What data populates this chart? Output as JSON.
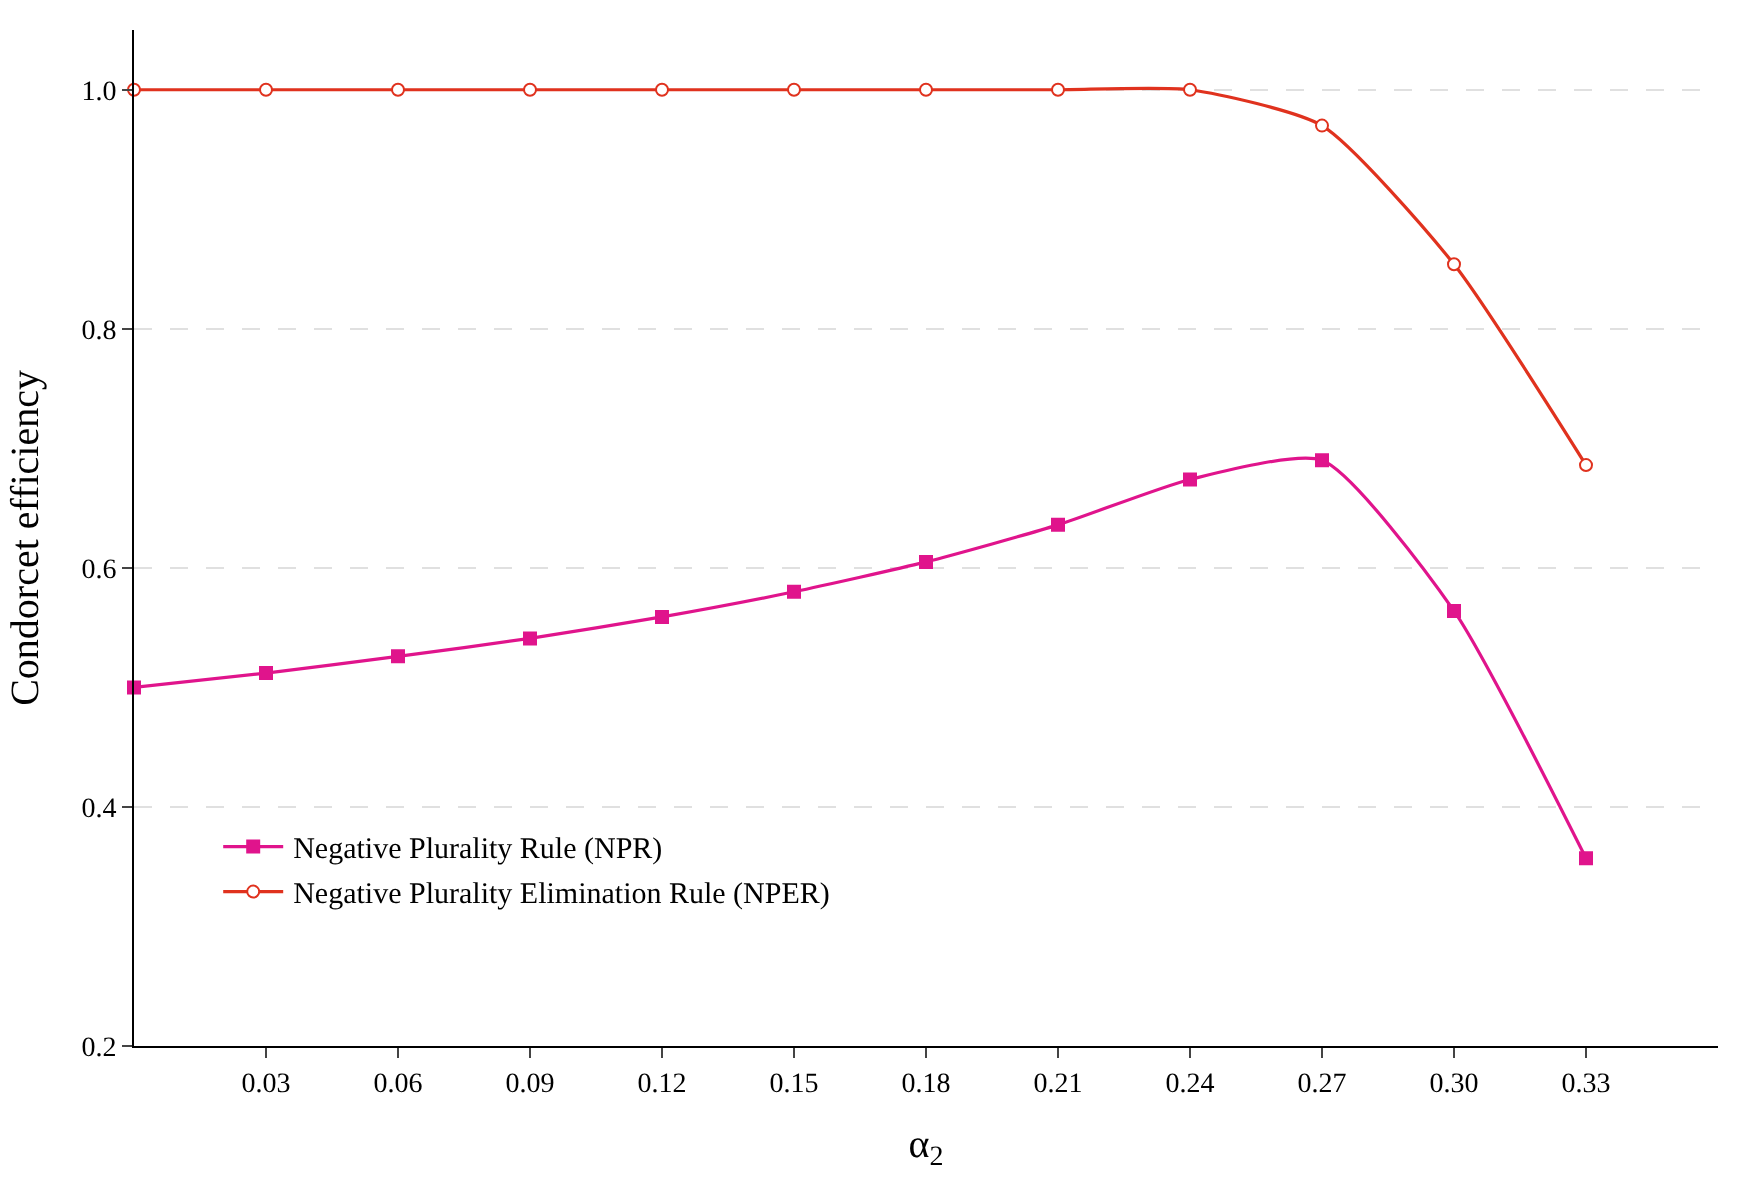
{
  "chart_data": {
    "type": "line",
    "xlabel": "α$_{2}$",
    "ylabel": "Condorcet efficiency",
    "x": [
      0,
      0.03,
      0.06,
      0.09,
      0.12,
      0.15,
      0.18,
      0.21,
      0.24,
      0.27,
      0.3,
      0.33
    ],
    "series": [
      {
        "name": "Negative Plurality Rule (NPR)",
        "color": "#e0148c",
        "marker": "square",
        "values": [
          0.5,
          0.512,
          0.526,
          0.541,
          0.559,
          0.58,
          0.605,
          0.636,
          0.674,
          0.69,
          0.564,
          0.357
        ]
      },
      {
        "name": "Negative Plurality Elimination Rule (NPER)",
        "color": "#e0321e",
        "marker": "circle",
        "values": [
          1.0,
          1.0,
          1.0,
          1.0,
          1.0,
          1.0,
          1.0,
          1.0,
          1.0,
          0.97,
          0.854,
          0.686
        ]
      }
    ],
    "xlim": [
      0,
      0.36
    ],
    "ylim": [
      0.2,
      1.05
    ],
    "xticks": [
      0.03,
      0.06,
      0.09,
      0.12,
      0.15,
      0.18,
      0.21,
      0.24,
      0.27,
      {
        "value": 0.3,
        "label": "0.30"
      },
      0.33
    ],
    "yticks": [
      0.2,
      0.4,
      0.6,
      0.8,
      {
        "value": 1.0,
        "label": "1.0"
      }
    ],
    "grid": "y",
    "legend": "bottom left",
    "line_style": "solid"
  }
}
